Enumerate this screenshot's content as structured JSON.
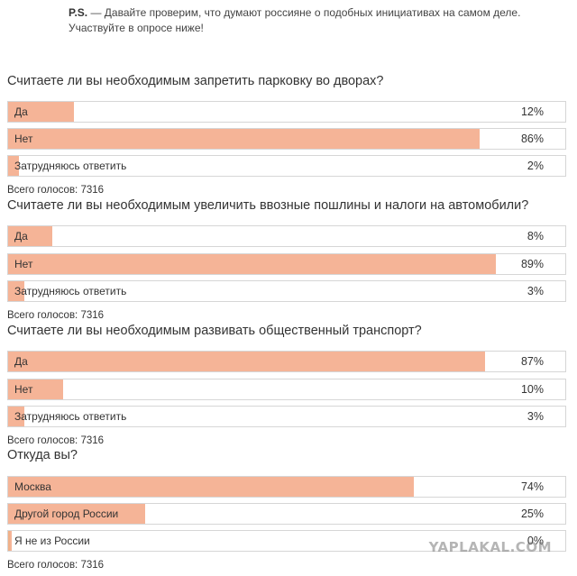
{
  "intro": {
    "prefix": "P.S.",
    "text": " — Давайте проверим, что думают россияне о подобных инициативах на самом деле. Участвуйте в опросе ниже!"
  },
  "polls": [
    {
      "question": "Считаете ли вы необходимым запретить парковку во дворах?",
      "total": "Всего голосов: 7316",
      "options": [
        {
          "label": "Да",
          "percent": "12%",
          "value": 12
        },
        {
          "label": "Нет",
          "percent": "86%",
          "value": 86
        },
        {
          "label": "Затрудняюсь ответить",
          "percent": "2%",
          "value": 2
        }
      ]
    },
    {
      "question": "Считаете ли вы необходимым увеличить ввозные пошлины и налоги на автомобили?",
      "total": "Всего голосов: 7316",
      "options": [
        {
          "label": "Да",
          "percent": "8%",
          "value": 8
        },
        {
          "label": "Нет",
          "percent": "89%",
          "value": 89
        },
        {
          "label": "Затрудняюсь ответить",
          "percent": "3%",
          "value": 3
        }
      ]
    },
    {
      "question": "Считаете ли вы необходимым развивать общественный транспорт?",
      "total": "Всего голосов: 7316",
      "options": [
        {
          "label": "Да",
          "percent": "87%",
          "value": 87
        },
        {
          "label": "Нет",
          "percent": "10%",
          "value": 10
        },
        {
          "label": "Затрудняюсь ответить",
          "percent": "3%",
          "value": 3
        }
      ]
    },
    {
      "question": "Откуда вы?",
      "total": "Всего голосов: 7316",
      "options": [
        {
          "label": "Москва",
          "percent": "74%",
          "value": 74
        },
        {
          "label": "Другой город России",
          "percent": "25%",
          "value": 25
        },
        {
          "label": "Я не из России",
          "percent": "0%",
          "value": 0
        }
      ]
    }
  ],
  "watermark": "YAPLAKAL.COM",
  "colors": {
    "bar_fill": "#f5b497",
    "bar_border": "#d6d6d6"
  }
}
